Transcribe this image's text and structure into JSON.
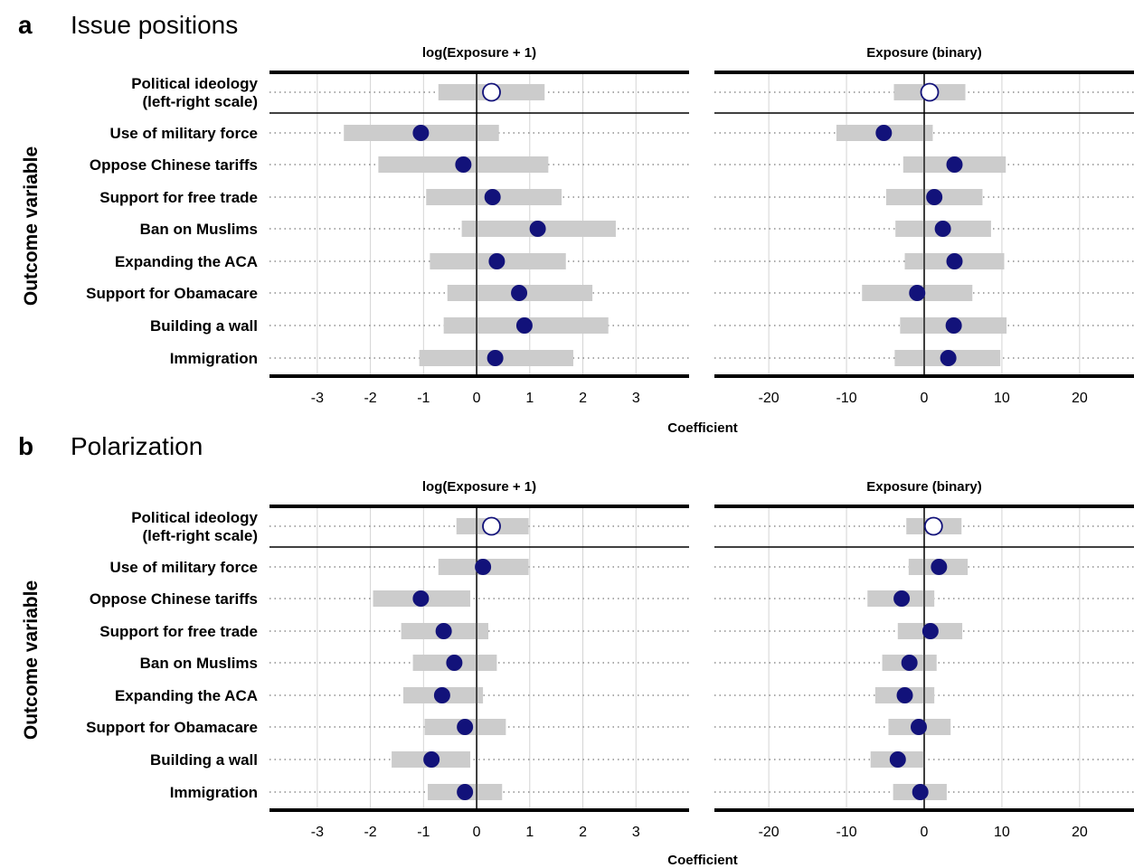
{
  "figure": {
    "y_axis_label": "Outcome variable",
    "x_axis_label": "Coefficient"
  },
  "chart_data": [
    {
      "type": "scatter",
      "panel_letter": "a",
      "panel_title": "Issue positions",
      "facet": "log(Exposure + 1)",
      "categories": [
        "Political ideology\n(left-right scale)",
        "Use of military force",
        "Oppose Chinese tariffs",
        "Support for free trade",
        "Ban on Muslims",
        "Expanding the ACA",
        "Support for Obamacare",
        "Building a wall",
        "Immigration"
      ],
      "estimates": [
        0.28,
        -1.05,
        -0.25,
        0.3,
        1.15,
        0.38,
        0.8,
        0.9,
        0.35
      ],
      "ci_low": [
        -0.72,
        -2.5,
        -1.85,
        -0.95,
        -0.28,
        -0.88,
        -0.55,
        -0.62,
        -1.08
      ],
      "ci_high": [
        1.28,
        0.42,
        1.35,
        1.6,
        2.62,
        1.68,
        2.18,
        2.48,
        1.82
      ],
      "hollow_marker": [
        true,
        false,
        false,
        false,
        false,
        false,
        false,
        false,
        false
      ],
      "xlim": [
        -3.9,
        4.0
      ],
      "xticks": [
        -3,
        -2,
        -1,
        0,
        1,
        2,
        3
      ],
      "xtick_labels": [
        "-3",
        "-2",
        "-1",
        "0",
        "1",
        "2",
        "3"
      ],
      "grid": true
    },
    {
      "type": "scatter",
      "panel_letter": "a",
      "panel_title": "Issue positions",
      "facet": "Exposure (binary)",
      "categories": [
        "Political ideology\n(left-right scale)",
        "Use of military force",
        "Oppose Chinese tariffs",
        "Support for free trade",
        "Ban on Muslims",
        "Expanding the ACA",
        "Support for Obamacare",
        "Building a wall",
        "Immigration"
      ],
      "estimates": [
        0.7,
        -5.2,
        3.9,
        1.3,
        2.4,
        3.9,
        -0.9,
        3.8,
        3.1
      ],
      "ci_low": [
        -3.9,
        -11.3,
        -2.7,
        -4.9,
        -3.7,
        -2.5,
        -8.0,
        -3.1,
        -3.8
      ],
      "ci_high": [
        5.3,
        1.1,
        10.5,
        7.5,
        8.6,
        10.3,
        6.2,
        10.6,
        9.8
      ],
      "hollow_marker": [
        true,
        false,
        false,
        false,
        false,
        false,
        false,
        false,
        false
      ],
      "xlim": [
        -27,
        27
      ],
      "xticks": [
        -20,
        -10,
        0,
        10,
        20
      ],
      "xtick_labels": [
        "-20",
        "-10",
        "0",
        "10",
        "20"
      ],
      "grid": true
    },
    {
      "type": "scatter",
      "panel_letter": "b",
      "panel_title": "Polarization",
      "facet": "log(Exposure + 1)",
      "categories": [
        "Political ideology\n(left-right scale)",
        "Use of military force",
        "Oppose Chinese tariffs",
        "Support for free trade",
        "Ban on Muslims",
        "Expanding the ACA",
        "Support for Obamacare",
        "Building a wall",
        "Immigration"
      ],
      "estimates": [
        0.28,
        0.12,
        -1.05,
        -0.62,
        -0.42,
        -0.65,
        -0.22,
        -0.85,
        -0.22
      ],
      "ci_low": [
        -0.38,
        -0.72,
        -1.95,
        -1.42,
        -1.2,
        -1.38,
        -0.98,
        -1.6,
        -0.92
      ],
      "ci_high": [
        0.98,
        0.98,
        -0.12,
        0.22,
        0.38,
        0.12,
        0.55,
        -0.12,
        0.48
      ],
      "hollow_marker": [
        true,
        false,
        false,
        false,
        false,
        false,
        false,
        false,
        false
      ],
      "xlim": [
        -3.9,
        4.0
      ],
      "xticks": [
        -3,
        -2,
        -1,
        0,
        1,
        2,
        3
      ],
      "xtick_labels": [
        "-3",
        "-2",
        "-1",
        "0",
        "1",
        "2",
        "3"
      ],
      "grid": true
    },
    {
      "type": "scatter",
      "panel_letter": "b",
      "panel_title": "Polarization",
      "facet": "Exposure (binary)",
      "categories": [
        "Political ideology\n(left-right scale)",
        "Use of military force",
        "Oppose Chinese tariffs",
        "Support for free trade",
        "Ban on Muslims",
        "Expanding the ACA",
        "Support for Obamacare",
        "Building a wall",
        "Immigration"
      ],
      "estimates": [
        1.2,
        1.9,
        -2.9,
        0.8,
        -1.9,
        -2.5,
        -0.7,
        -3.4,
        -0.5
      ],
      "ci_low": [
        -2.3,
        -2.0,
        -7.3,
        -3.4,
        -5.4,
        -6.3,
        -4.6,
        -6.9,
        -4.0
      ],
      "ci_high": [
        4.8,
        5.6,
        1.3,
        4.9,
        1.6,
        1.3,
        3.4,
        0.1,
        2.9
      ],
      "hollow_marker": [
        true,
        false,
        false,
        false,
        false,
        false,
        false,
        false,
        false
      ],
      "xlim": [
        -27,
        27
      ],
      "xticks": [
        -20,
        -10,
        0,
        10,
        20
      ],
      "xtick_labels": [
        "-20",
        "-10",
        "0",
        "10",
        "20"
      ],
      "grid": true
    }
  ],
  "colors": {
    "point": "#12127a",
    "ci_bar": "#cccccc",
    "grid": "#d4d4d4",
    "axis": "#000000"
  }
}
